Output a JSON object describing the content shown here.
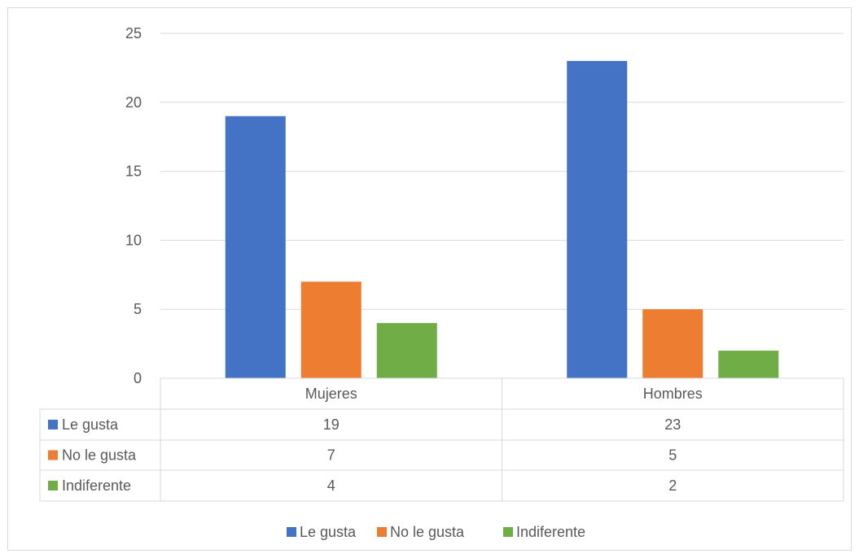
{
  "chart_data": {
    "type": "bar",
    "title": "",
    "xlabel": "",
    "ylabel": "",
    "categories": [
      "Mujeres",
      "Hombres"
    ],
    "ylim": [
      0,
      25
    ],
    "yticks": [
      0,
      5,
      10,
      15,
      20,
      25
    ],
    "ytick_labels": [
      "0",
      "5",
      "10",
      "15",
      "20",
      "25"
    ],
    "grid": true,
    "legend_position": "bottom",
    "data_table": true,
    "series": [
      {
        "name": "Le gusta",
        "color": "#4472C4",
        "values": [
          19,
          23
        ],
        "value_labels": [
          "19",
          "23"
        ]
      },
      {
        "name": "No le gusta",
        "color": "#ED7D31",
        "values": [
          7,
          5
        ],
        "value_labels": [
          "7",
          "5"
        ]
      },
      {
        "name": "Indiferente",
        "color": "#70AD47",
        "values": [
          4,
          2
        ],
        "value_labels": [
          "4",
          "2"
        ]
      }
    ]
  }
}
